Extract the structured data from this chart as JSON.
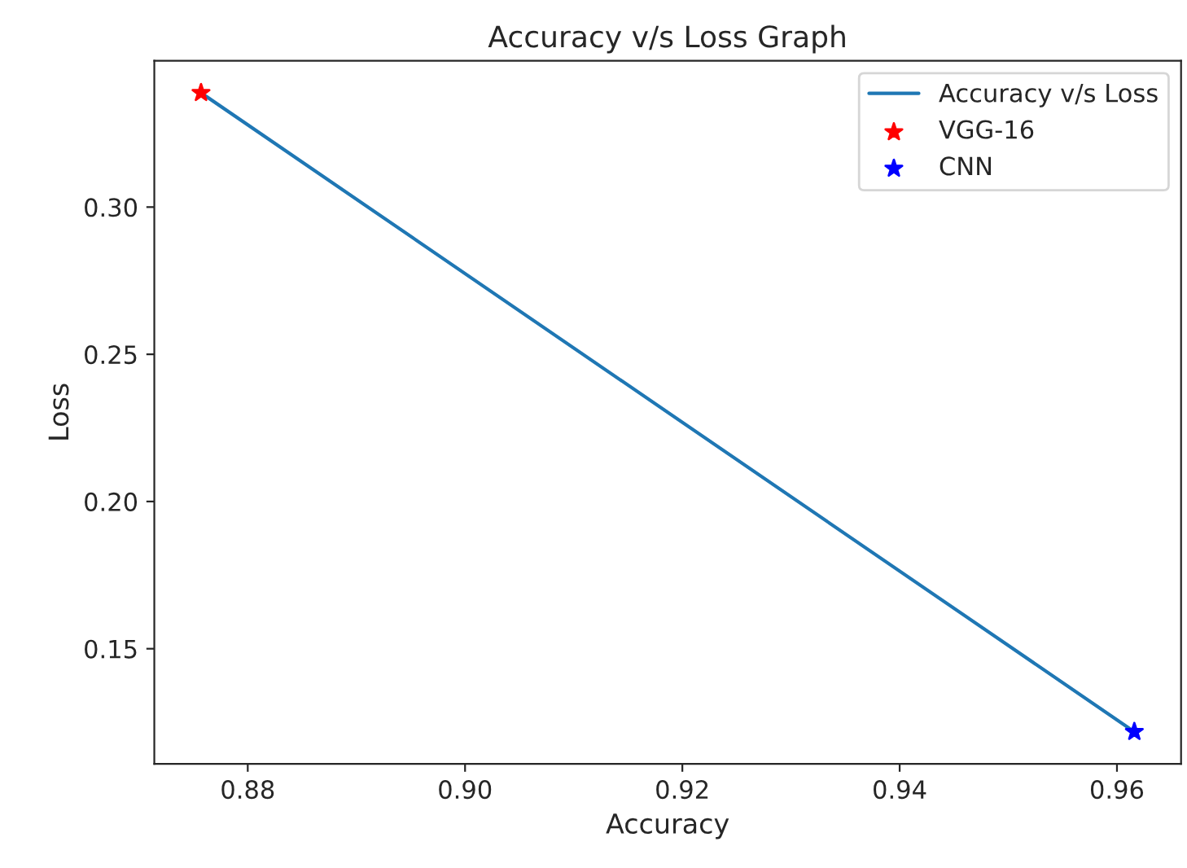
{
  "chart_data": {
    "type": "line",
    "title": "Accuracy v/s Loss Graph",
    "xlabel": "Accuracy",
    "ylabel": "Loss",
    "series": [
      {
        "name": "Accuracy v/s Loss",
        "type": "line",
        "color": "#1f77b4",
        "values": [
          0.3388,
          0.1218
        ]
      },
      {
        "name": "VGG-16",
        "type": "scatter",
        "color": "#ff0000",
        "marker": "star",
        "x": [
          0.8757
        ],
        "values": [
          0.3388
        ]
      },
      {
        "name": "CNN",
        "type": "scatter",
        "color": "#0000ff",
        "marker": "star",
        "x": [
          0.9616
        ],
        "values": [
          0.1218
        ]
      }
    ],
    "x": [
      0.8757,
      0.9616
    ],
    "xlim": [
      0.8714,
      0.9659
    ],
    "ylim": [
      0.1109,
      0.3497
    ],
    "xticks": [
      0.88,
      {
        "value": 0.9,
        "label": "0.90"
      },
      0.92,
      0.94,
      0.96
    ],
    "yticks": [
      0.15,
      {
        "value": 0.2,
        "label": "0.20"
      },
      0.25,
      {
        "value": 0.3,
        "label": "0.30"
      }
    ],
    "legend": "top right",
    "grid": false
  }
}
